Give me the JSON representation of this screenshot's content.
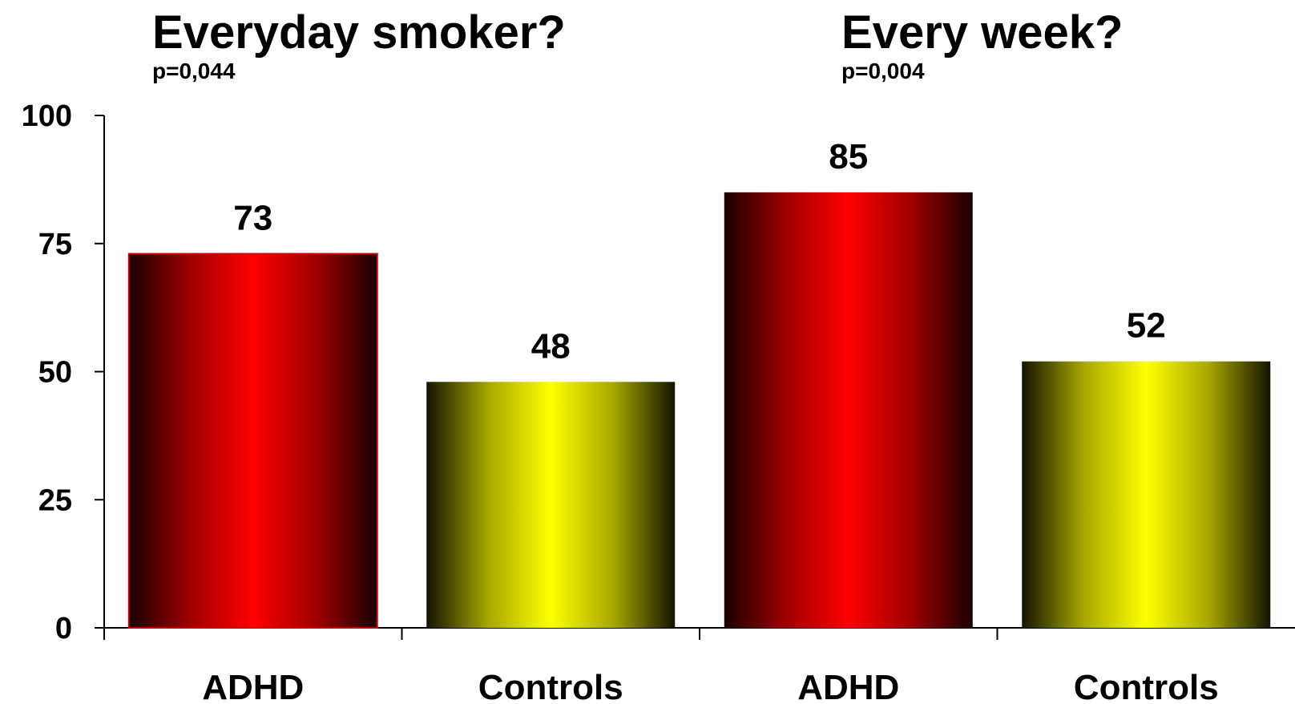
{
  "chart_data": {
    "type": "bar",
    "categories": [
      "ADHD",
      "Controls",
      "ADHD",
      "Controls"
    ],
    "values": [
      73,
      48,
      85,
      52
    ],
    "groups": [
      {
        "title": "Everyday smoker?",
        "subtitle": "p=0,044"
      },
      {
        "title": "Every week?",
        "subtitle": "p=0,004"
      }
    ],
    "yticks": [
      0,
      25,
      50,
      75,
      100
    ],
    "ylim": [
      0,
      100
    ],
    "bar_colors": [
      "red",
      "yellow",
      "red",
      "yellow"
    ],
    "grid": false
  },
  "colors": {
    "red_mid": "#ff0000",
    "red_dark": "#1a0000",
    "yellow_mid": "#ffff00",
    "yellow_dark": "#141400"
  }
}
